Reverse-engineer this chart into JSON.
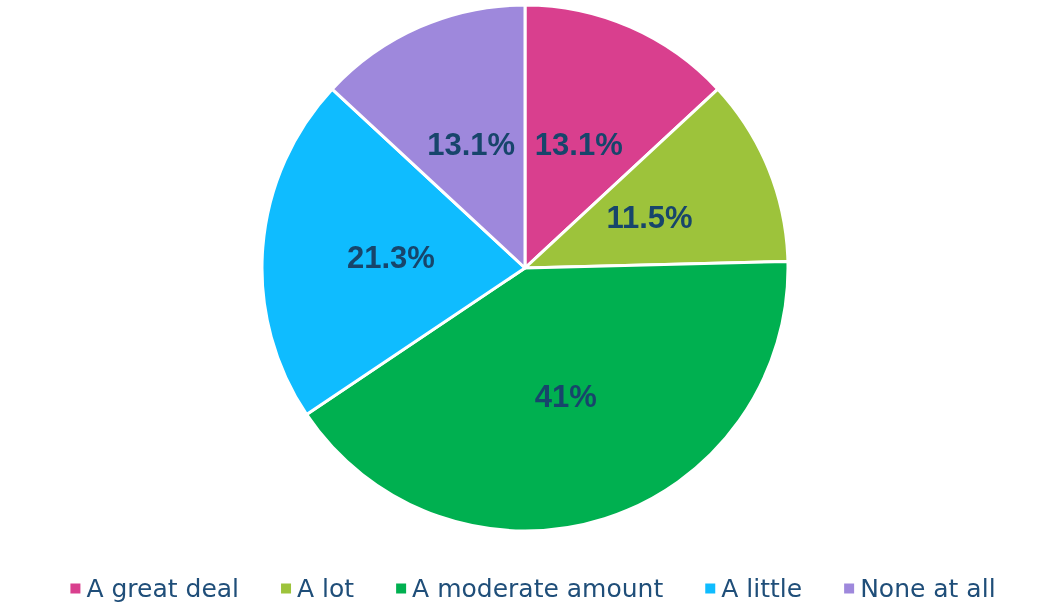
{
  "chart_data": {
    "type": "pie",
    "categories": [
      "A great deal",
      "A lot",
      "A moderate amount",
      "A little",
      "None at all"
    ],
    "values": [
      13.1,
      11.5,
      41,
      21.3,
      13.1
    ],
    "value_labels": [
      "13.1%",
      "11.5%",
      "41%",
      "21.3%",
      "13.1%"
    ],
    "colors": [
      "#d93f8e",
      "#9dc33b",
      "#00b050",
      "#0fbcff",
      "#9e88dc"
    ],
    "legend": "bottom"
  }
}
